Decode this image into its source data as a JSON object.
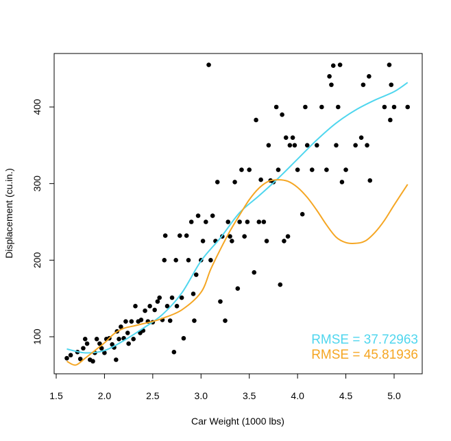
{
  "chart_data": {
    "type": "scatter",
    "title": "",
    "xlabel": "Car Weight (1000 lbs)",
    "ylabel": "Displacement (cu.in.)",
    "xlim": [
      1.55,
      5.3
    ],
    "ylim": [
      45,
      475
    ],
    "x_ticks": [
      {
        "value": 1.5,
        "label": "1.5"
      },
      {
        "value": 2.0,
        "label": "2.0"
      },
      {
        "value": 2.5,
        "label": "2.5"
      },
      {
        "value": 3.0,
        "label": "3.0"
      },
      {
        "value": 3.5,
        "label": "3.5"
      },
      {
        "value": 4.0,
        "label": "4.0"
      },
      {
        "value": 4.5,
        "label": "4.5"
      },
      {
        "value": 5.0,
        "label": "5.0"
      }
    ],
    "y_ticks": [
      {
        "value": 100,
        "label": "100"
      },
      {
        "value": 200,
        "label": "200"
      },
      {
        "value": 300,
        "label": "300"
      },
      {
        "value": 400,
        "label": "400"
      }
    ],
    "grid": false,
    "legend_position": "bottom-right",
    "points": [
      [
        1.61,
        72
      ],
      [
        1.65,
        76
      ],
      [
        1.72,
        80
      ],
      [
        1.75,
        71
      ],
      [
        1.78,
        85
      ],
      [
        1.8,
        97
      ],
      [
        1.82,
        91
      ],
      [
        1.85,
        70
      ],
      [
        1.88,
        68
      ],
      [
        1.9,
        79
      ],
      [
        1.92,
        97
      ],
      [
        1.95,
        91
      ],
      [
        1.97,
        85
      ],
      [
        2.0,
        79
      ],
      [
        2.02,
        97
      ],
      [
        2.05,
        98
      ],
      [
        2.08,
        90
      ],
      [
        2.1,
        86
      ],
      [
        2.12,
        70
      ],
      [
        2.13,
        107
      ],
      [
        2.15,
        97
      ],
      [
        2.17,
        113
      ],
      [
        2.2,
        98
      ],
      [
        2.22,
        120
      ],
      [
        2.24,
        105
      ],
      [
        2.25,
        91
      ],
      [
        2.28,
        120
      ],
      [
        2.3,
        97
      ],
      [
        2.32,
        140
      ],
      [
        2.35,
        120
      ],
      [
        2.37,
        105
      ],
      [
        2.38,
        122
      ],
      [
        2.4,
        108
      ],
      [
        2.42,
        134
      ],
      [
        2.45,
        120
      ],
      [
        2.47,
        140
      ],
      [
        2.5,
        119
      ],
      [
        2.52,
        135
      ],
      [
        2.55,
        146
      ],
      [
        2.57,
        151
      ],
      [
        2.6,
        122
      ],
      [
        2.62,
        200
      ],
      [
        2.63,
        232
      ],
      [
        2.65,
        140
      ],
      [
        2.68,
        121
      ],
      [
        2.7,
        151
      ],
      [
        2.72,
        80
      ],
      [
        2.74,
        200
      ],
      [
        2.75,
        140
      ],
      [
        2.78,
        232
      ],
      [
        2.8,
        151
      ],
      [
        2.82,
        98
      ],
      [
        2.85,
        232
      ],
      [
        2.87,
        200
      ],
      [
        2.9,
        250
      ],
      [
        2.92,
        156
      ],
      [
        2.93,
        121
      ],
      [
        2.95,
        181
      ],
      [
        2.97,
        258
      ],
      [
        3.0,
        200
      ],
      [
        3.02,
        225
      ],
      [
        3.05,
        250
      ],
      [
        3.08,
        455
      ],
      [
        3.1,
        200
      ],
      [
        3.12,
        258
      ],
      [
        3.15,
        225
      ],
      [
        3.17,
        302
      ],
      [
        3.2,
        146
      ],
      [
        3.22,
        231
      ],
      [
        3.25,
        121
      ],
      [
        3.28,
        250
      ],
      [
        3.3,
        231
      ],
      [
        3.32,
        225
      ],
      [
        3.35,
        302
      ],
      [
        3.38,
        163
      ],
      [
        3.4,
        250
      ],
      [
        3.42,
        318
      ],
      [
        3.45,
        231
      ],
      [
        3.48,
        250
      ],
      [
        3.5,
        318
      ],
      [
        3.55,
        184
      ],
      [
        3.57,
        383
      ],
      [
        3.6,
        250
      ],
      [
        3.62,
        305
      ],
      [
        3.65,
        250
      ],
      [
        3.68,
        225
      ],
      [
        3.7,
        350
      ],
      [
        3.72,
        304
      ],
      [
        3.75,
        302
      ],
      [
        3.78,
        400
      ],
      [
        3.8,
        318
      ],
      [
        3.82,
        168
      ],
      [
        3.84,
        390
      ],
      [
        3.86,
        225
      ],
      [
        3.88,
        360
      ],
      [
        3.9,
        231
      ],
      [
        3.92,
        350
      ],
      [
        3.95,
        360
      ],
      [
        3.97,
        350
      ],
      [
        4.0,
        318
      ],
      [
        4.05,
        260
      ],
      [
        4.08,
        400
      ],
      [
        4.1,
        350
      ],
      [
        4.15,
        318
      ],
      [
        4.2,
        350
      ],
      [
        4.25,
        400
      ],
      [
        4.3,
        318
      ],
      [
        4.33,
        440
      ],
      [
        4.35,
        429
      ],
      [
        4.37,
        454
      ],
      [
        4.4,
        350
      ],
      [
        4.42,
        400
      ],
      [
        4.44,
        455
      ],
      [
        4.46,
        302
      ],
      [
        4.5,
        318
      ],
      [
        4.6,
        350
      ],
      [
        4.66,
        360
      ],
      [
        4.68,
        429
      ],
      [
        4.72,
        350
      ],
      [
        4.74,
        440
      ],
      [
        4.75,
        304
      ],
      [
        4.9,
        400
      ],
      [
        4.95,
        455
      ],
      [
        4.96,
        383
      ],
      [
        4.97,
        429
      ],
      [
        5.0,
        400
      ],
      [
        5.14,
        400
      ]
    ],
    "series": [
      {
        "name": "RMSE = 37.72963",
        "color": "#4fd6ee",
        "x": [
          1.61,
          1.8,
          2.0,
          2.2,
          2.4,
          2.6,
          2.8,
          3.0,
          3.2,
          3.4,
          3.6,
          3.8,
          4.0,
          4.2,
          4.4,
          4.6,
          4.8,
          5.0,
          5.14
        ],
        "values": [
          84,
          79,
          82,
          95,
          111,
          129,
          157,
          199,
          229,
          262,
          284,
          307,
          332,
          357,
          379,
          396,
          409,
          420,
          432
        ]
      },
      {
        "name": "RMSE = 45.81936",
        "color": "#f5a623",
        "x": [
          1.61,
          1.7,
          1.8,
          1.9,
          2.0,
          2.1,
          2.2,
          2.3,
          2.4,
          2.5,
          2.6,
          2.8,
          3.0,
          3.1,
          3.2,
          3.3,
          3.4,
          3.5,
          3.6,
          3.7,
          3.8,
          3.9,
          4.0,
          4.1,
          4.2,
          4.3,
          4.4,
          4.5,
          4.6,
          4.7,
          4.8,
          4.9,
          5.0,
          5.14
        ],
        "values": [
          68,
          63,
          72,
          82,
          92,
          104,
          111,
          114,
          117,
          120,
          124,
          135,
          158,
          188,
          214,
          238,
          259,
          279,
          294,
          303,
          305,
          303,
          295,
          282,
          265,
          246,
          230,
          223,
          222,
          225,
          236,
          252,
          272,
          299
        ]
      }
    ]
  }
}
